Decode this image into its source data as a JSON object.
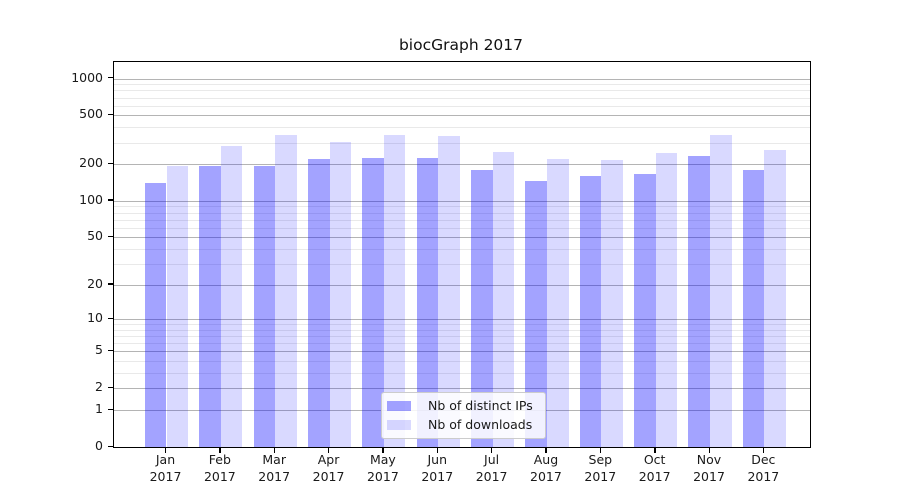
{
  "chart_data": {
    "type": "bar",
    "title": "biocGraph 2017",
    "year": "2017",
    "months": [
      "Jan",
      "Feb",
      "Mar",
      "Apr",
      "May",
      "Jun",
      "Jul",
      "Aug",
      "Sep",
      "Oct",
      "Nov",
      "Dec"
    ],
    "categories": [
      "Jan 2017",
      "Feb 2017",
      "Mar 2017",
      "Apr 2017",
      "May 2017",
      "Jun 2017",
      "Jul 2017",
      "Aug 2017",
      "Sep 2017",
      "Oct 2017",
      "Nov 2017",
      "Dec 2017"
    ],
    "series": [
      {
        "name": "Nb of distinct IPs",
        "color": "#0000ff5c",
        "values": [
          140,
          195,
          195,
          220,
          225,
          225,
          180,
          145,
          160,
          165,
          235,
          180
        ]
      },
      {
        "name": "Nb of downloads",
        "color": "#0000ff26",
        "values": [
          195,
          280,
          345,
          305,
          345,
          340,
          250,
          220,
          215,
          245,
          345,
          260
        ]
      }
    ],
    "yscale": "log1p",
    "y_ticks": [
      0,
      1,
      2,
      5,
      10,
      20,
      50,
      100,
      200,
      500,
      1000
    ],
    "y_minor_ticks": [
      3,
      4,
      6,
      7,
      8,
      9,
      30,
      40,
      60,
      70,
      80,
      90,
      300,
      400,
      600,
      700,
      800,
      900
    ],
    "ylim": [
      0,
      1100
    ],
    "xlabel": "",
    "ylabel": "",
    "grid": {
      "style": "horizontal",
      "major_color": "#b4b4b4",
      "minor_color": "#e9e9e9"
    },
    "legend": {
      "position": "inside-bottom-center",
      "background": "#ffffffd9",
      "border_color": "#cccccc"
    }
  }
}
